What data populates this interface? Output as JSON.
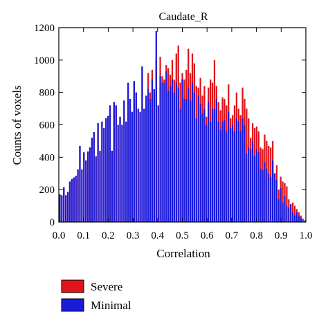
{
  "chart_data": {
    "type": "bar",
    "title": "Caudate_R",
    "xlabel": "Correlation",
    "ylabel": "Counts of voxels",
    "xlim": [
      0,
      1
    ],
    "ylim": [
      0,
      1200
    ],
    "xticks": [
      0.0,
      0.1,
      0.2,
      0.3,
      0.4,
      0.5,
      0.6,
      0.7,
      0.8,
      0.9,
      1.0
    ],
    "xtick_labels": [
      "0.0",
      "0.1",
      "0.2",
      "0.3",
      "0.4",
      "0.5",
      "0.6",
      "0.7",
      "0.8",
      "0.9",
      "1.0"
    ],
    "yticks": [
      0,
      200,
      400,
      600,
      800,
      1000,
      1200
    ],
    "ytick_labels": [
      "0",
      "200",
      "400",
      "600",
      "800",
      "1000",
      "1200"
    ],
    "grid": false,
    "legend_position": "below-left",
    "series_colors": {
      "Severe": "#e0141b",
      "Minimal": "#1a1adb"
    },
    "series": [
      {
        "name": "Severe",
        "values": [
          170,
          165,
          215,
          165,
          185,
          250,
          265,
          275,
          285,
          325,
          470,
          325,
          430,
          380,
          435,
          460,
          520,
          555,
          405,
          610,
          440,
          620,
          580,
          640,
          655,
          720,
          440,
          740,
          720,
          600,
          650,
          600,
          750,
          620,
          860,
          760,
          680,
          870,
          800,
          700,
          680,
          960,
          700,
          780,
          920,
          800,
          940,
          820,
          1000,
          720,
          1020,
          900,
          880,
          970,
          950,
          910,
          1000,
          880,
          1040,
          1090,
          860,
          920,
          880,
          940,
          1070,
          920,
          1040,
          980,
          840,
          830,
          890,
          780,
          840,
          650,
          830,
          880,
          860,
          1000,
          840,
          740,
          690,
          770,
          760,
          720,
          850,
          640,
          660,
          720,
          800,
          700,
          660,
          830,
          760,
          700,
          640,
          520,
          610,
          580,
          590,
          560,
          460,
          450,
          540,
          500,
          470,
          460,
          500,
          300,
          350,
          200,
          280,
          250,
          240,
          220,
          140,
          110,
          120,
          100,
          80,
          60,
          40
        ]
      },
      {
        "name": "Minimal",
        "values": [
          170,
          165,
          215,
          165,
          185,
          250,
          265,
          275,
          285,
          325,
          470,
          325,
          430,
          380,
          435,
          460,
          520,
          555,
          405,
          610,
          440,
          620,
          580,
          640,
          655,
          720,
          440,
          740,
          720,
          600,
          650,
          600,
          750,
          620,
          860,
          760,
          680,
          870,
          800,
          700,
          680,
          960,
          700,
          780,
          820,
          760,
          880,
          820,
          1180,
          720,
          900,
          860,
          860,
          930,
          810,
          840,
          880,
          800,
          860,
          830,
          700,
          880,
          760,
          760,
          830,
          750,
          860,
          800,
          640,
          780,
          730,
          670,
          700,
          600,
          740,
          620,
          700,
          700,
          760,
          620,
          570,
          620,
          630,
          560,
          680,
          580,
          600,
          560,
          640,
          620,
          560,
          640,
          600,
          420,
          460,
          450,
          500,
          410,
          450,
          430,
          330,
          320,
          370,
          330,
          300,
          280,
          380,
          300,
          260,
          140,
          210,
          120,
          160,
          100,
          90,
          110,
          60,
          40,
          60,
          40,
          30,
          20,
          10
        ]
      }
    ]
  }
}
